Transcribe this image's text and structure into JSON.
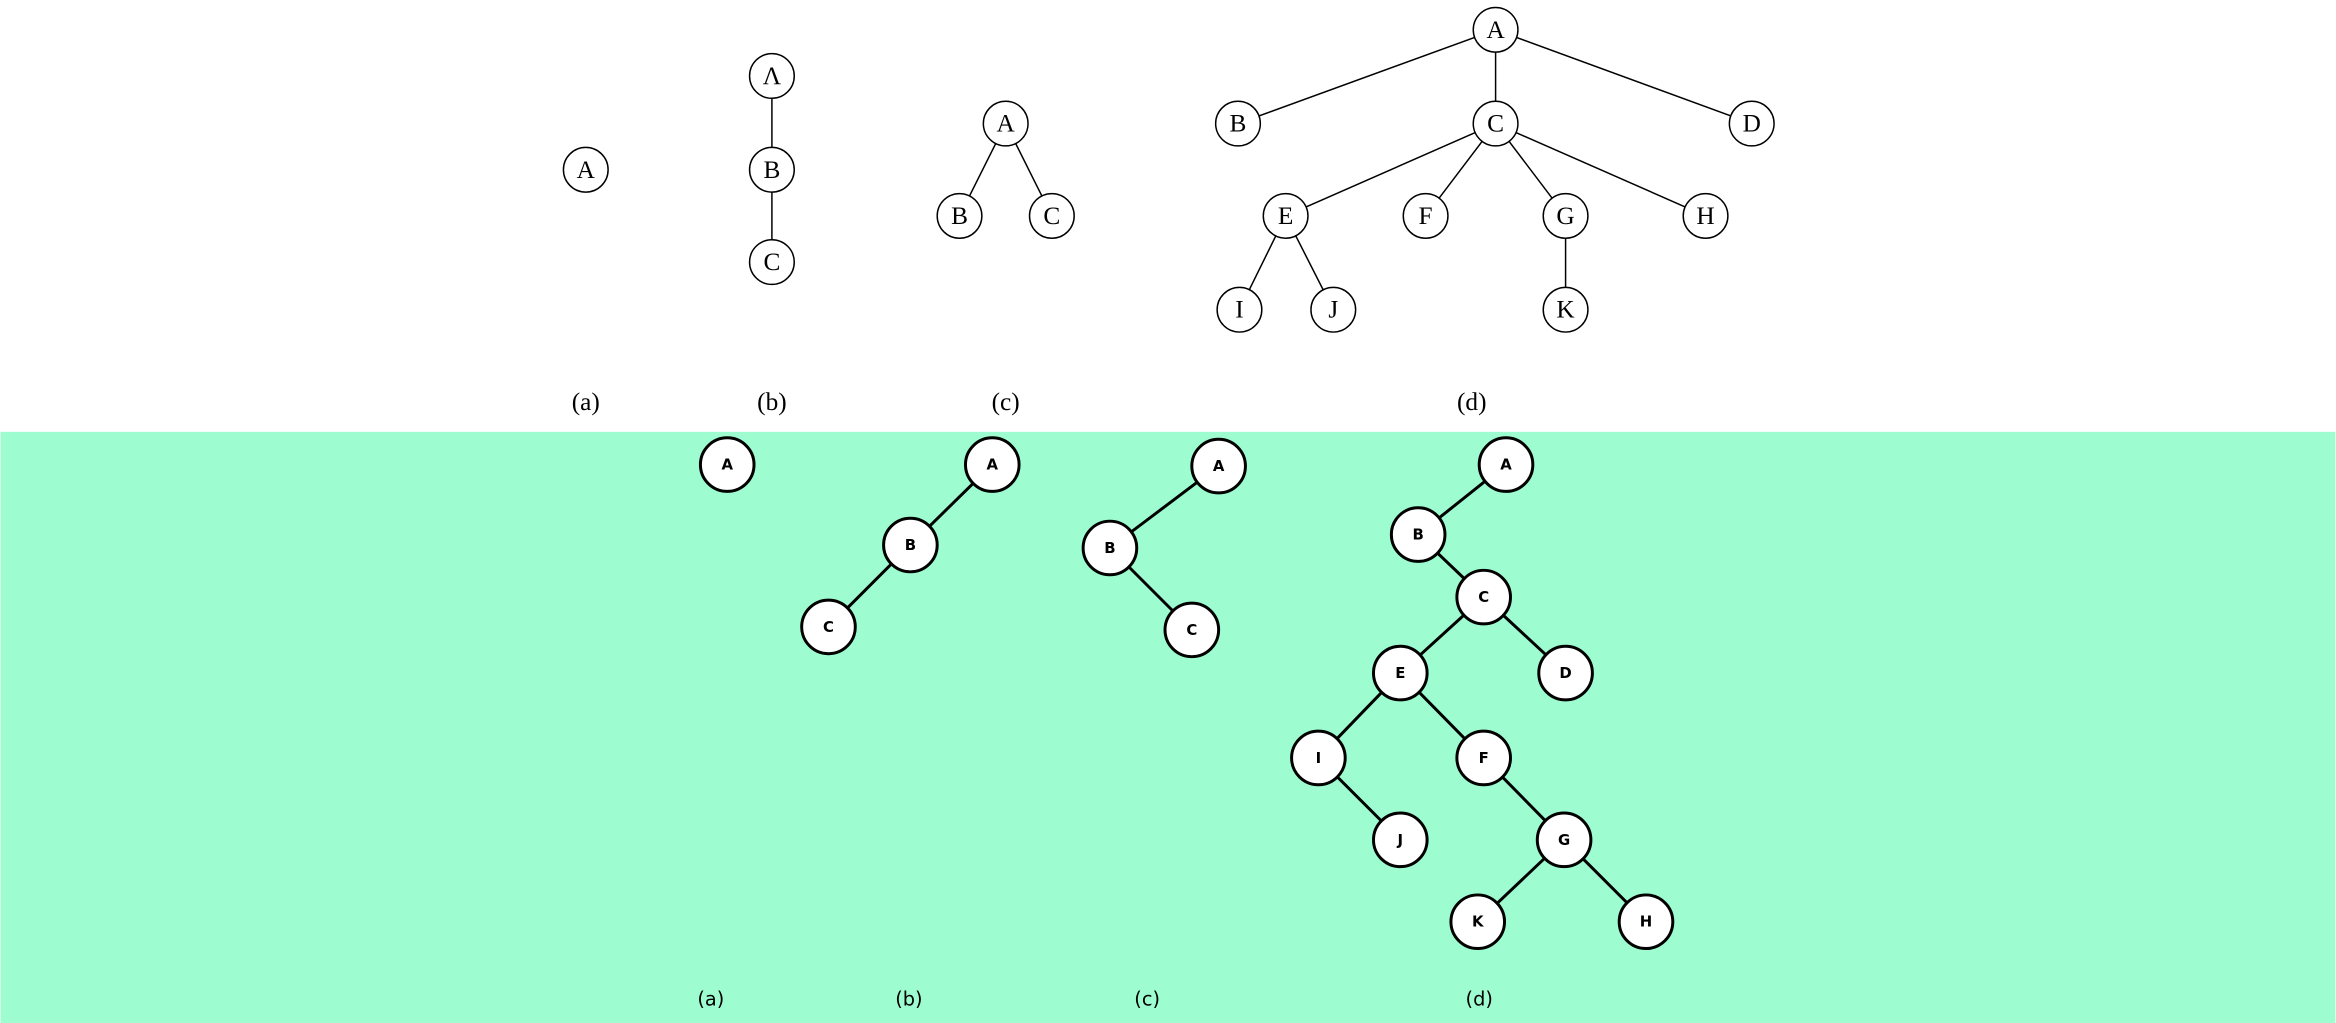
{
  "top": {
    "trees": [
      {
        "caption": "(a)",
        "nodes": [
          "A"
        ]
      },
      {
        "caption": "(b)",
        "nodes": [
          "Λ",
          "B",
          "C"
        ]
      },
      {
        "caption": "(c)",
        "nodes": [
          "A",
          "B",
          "C"
        ]
      },
      {
        "caption": "(d)",
        "nodes": [
          "A",
          "B",
          "C",
          "D",
          "E",
          "F",
          "G",
          "H",
          "I",
          "J",
          "K"
        ]
      }
    ]
  },
  "bottom": {
    "trees": [
      {
        "caption": "(a)",
        "nodes": [
          "A"
        ]
      },
      {
        "caption": "(b)",
        "nodes": [
          "A",
          "B",
          "C"
        ]
      },
      {
        "caption": "(c)",
        "nodes": [
          "A",
          "B",
          "C"
        ]
      },
      {
        "caption": "(d)",
        "nodes": [
          "A",
          "B",
          "C",
          "D",
          "E",
          "I",
          "F",
          "J",
          "G",
          "K",
          "H"
        ]
      }
    ]
  }
}
